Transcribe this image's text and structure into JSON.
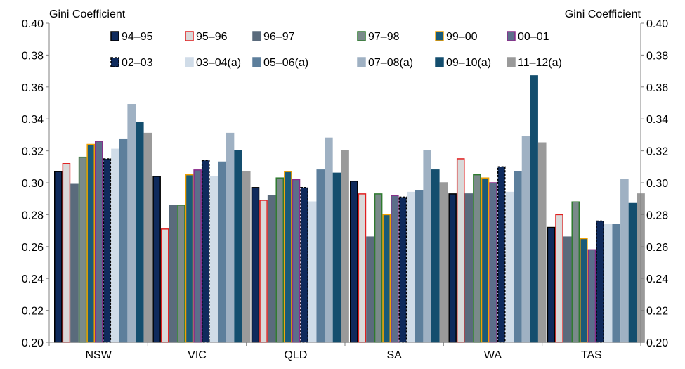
{
  "chart_data": {
    "type": "bar",
    "left_axis_title": "Gini Coefficient",
    "right_axis_title": "Gini Coefficient",
    "ylim": [
      0.2,
      0.4
    ],
    "yticks": [
      "0.20",
      "0.22",
      "0.24",
      "0.26",
      "0.28",
      "0.30",
      "0.32",
      "0.34",
      "0.36",
      "0.38",
      "0.40"
    ],
    "categories": [
      "NSW",
      "VIC",
      "QLD",
      "SA",
      "WA",
      "TAS"
    ],
    "legend_position": "top",
    "series": [
      {
        "name": "94–95",
        "color": "#0f2a5c",
        "border": "#000000",
        "values": [
          0.307,
          0.304,
          0.297,
          0.301,
          0.293,
          0.272
        ]
      },
      {
        "name": "95–96",
        "color": "#d9d9d9",
        "border": "#e02020",
        "values": [
          0.312,
          0.271,
          0.289,
          0.293,
          0.315,
          0.28
        ]
      },
      {
        "name": "96–97",
        "color": "#5a6b7c",
        "border": "#5a6b7c",
        "values": [
          0.299,
          0.286,
          0.292,
          0.266,
          0.293,
          0.266
        ]
      },
      {
        "name": "97–98",
        "color": "#7a8a8a",
        "border": "#2f7a2f",
        "values": [
          0.316,
          0.286,
          0.303,
          0.293,
          0.305,
          0.288
        ]
      },
      {
        "name": "99–00",
        "color": "#1a5a78",
        "border": "#f0a000",
        "values": [
          0.324,
          0.305,
          0.307,
          0.28,
          0.303,
          0.265
        ]
      },
      {
        "name": "00–01",
        "color": "#5c6e8a",
        "border": "#8a2a8a",
        "values": [
          0.326,
          0.308,
          0.302,
          0.292,
          0.3,
          0.258
        ]
      },
      {
        "name": "02–03",
        "color": "#0f2a5c",
        "border": "#000000",
        "dashed": true,
        "values": [
          0.315,
          0.314,
          0.297,
          0.291,
          0.31,
          0.276
        ]
      },
      {
        "name": "03–04(a)",
        "color": "#d0dce8",
        "border": "#d0dce8",
        "values": [
          0.321,
          0.304,
          0.288,
          0.294,
          0.294,
          0.274
        ]
      },
      {
        "name": "05–06(a)",
        "color": "#5d7f9c",
        "border": "#5d7f9c",
        "values": [
          0.327,
          0.313,
          0.308,
          0.295,
          0.307,
          0.274
        ]
      },
      {
        "name": "07–08(a)",
        "color": "#9fb1c3",
        "border": "#9fb1c3",
        "values": [
          0.349,
          0.331,
          0.328,
          0.32,
          0.329,
          0.302
        ]
      },
      {
        "name": "09–10(a)",
        "color": "#144e6e",
        "border": "#144e6e",
        "values": [
          0.338,
          0.32,
          0.306,
          0.308,
          0.367,
          0.287
        ]
      },
      {
        "name": "11–12(a)",
        "color": "#9a9a9a",
        "border": "#9a9a9a",
        "values": [
          0.331,
          0.307,
          0.32,
          0.3,
          0.325,
          0.293
        ]
      }
    ]
  }
}
